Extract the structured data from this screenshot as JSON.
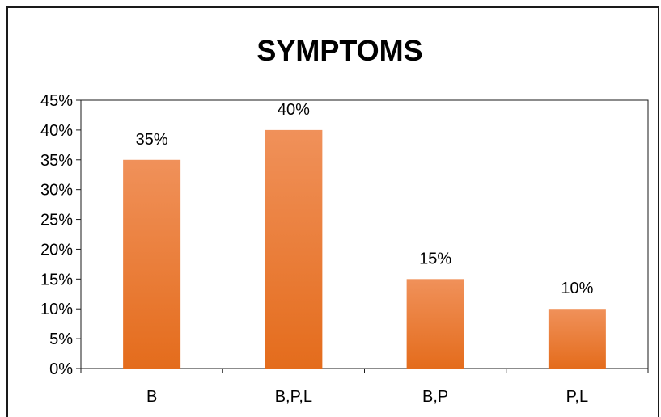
{
  "chart_data": {
    "type": "bar",
    "title": "SYMPTOMS",
    "categories": [
      "B",
      "B,P,L",
      "B,P",
      "P,L"
    ],
    "values": [
      35,
      40,
      15,
      10
    ],
    "value_labels": [
      "35%",
      "40%",
      "15%",
      "10%"
    ],
    "ylim": [
      0,
      45
    ],
    "y_ticks": [
      0,
      5,
      10,
      15,
      20,
      25,
      30,
      35,
      40,
      45
    ],
    "y_tick_labels": [
      "0%",
      "5%",
      "10%",
      "15%",
      "20%",
      "25%",
      "30%",
      "35%",
      "40%",
      "45%"
    ],
    "xlabel": "",
    "ylabel": "",
    "grid": false,
    "legend": "none",
    "bar_color_top": "#f0915a",
    "bar_color_bottom": "#e46c1c"
  }
}
